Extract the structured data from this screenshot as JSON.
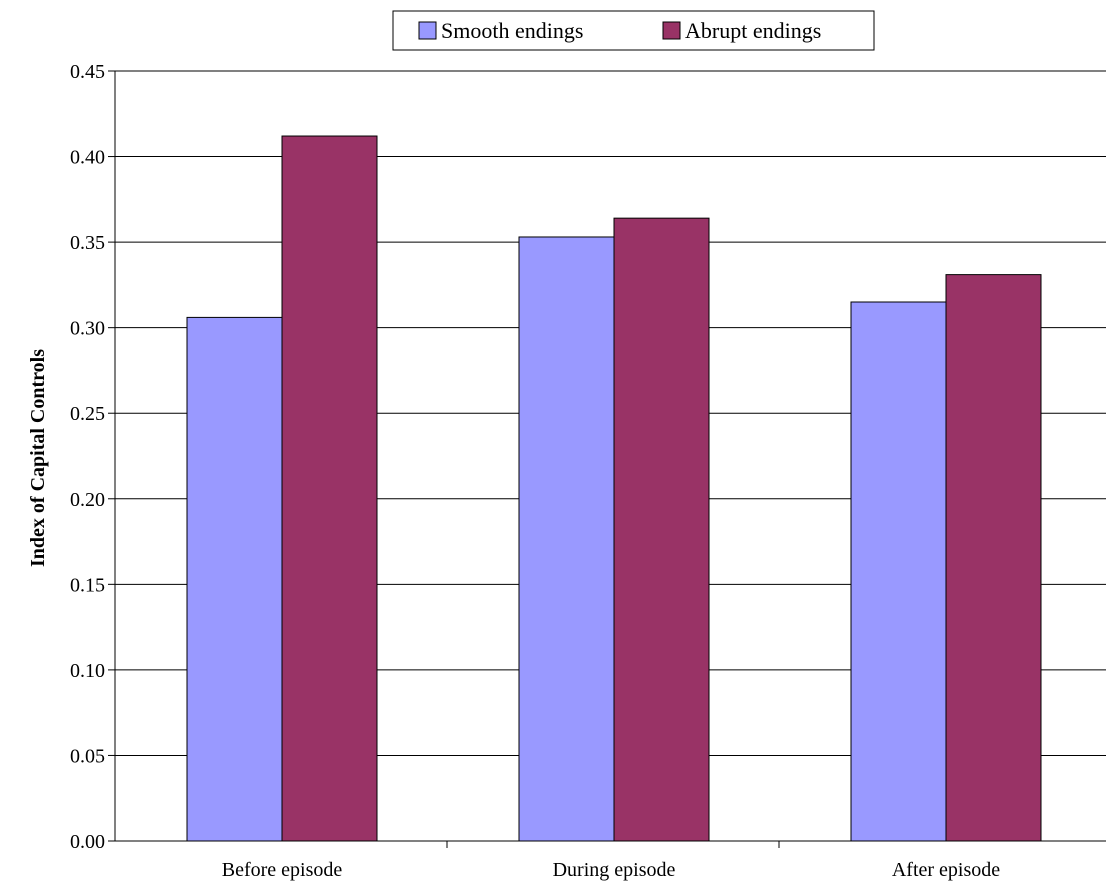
{
  "chart_data": {
    "type": "bar",
    "categories": [
      "Before episode",
      "During episode",
      "After episode"
    ],
    "series": [
      {
        "name": "Smooth endings",
        "values": [
          0.306,
          0.353,
          0.315
        ],
        "color": "#9999FF"
      },
      {
        "name": "Abrupt endings",
        "values": [
          0.412,
          0.364,
          0.331
        ],
        "color": "#993366"
      }
    ],
    "title": "",
    "xlabel": "",
    "ylabel": "Index of Capital Controls",
    "ylim": [
      0,
      0.45
    ],
    "yticks": [
      "0.00",
      "0.05",
      "0.10",
      "0.15",
      "0.20",
      "0.25",
      "0.30",
      "0.35",
      "0.40",
      "0.45"
    ],
    "grid": true,
    "legend_position": "top-center"
  }
}
